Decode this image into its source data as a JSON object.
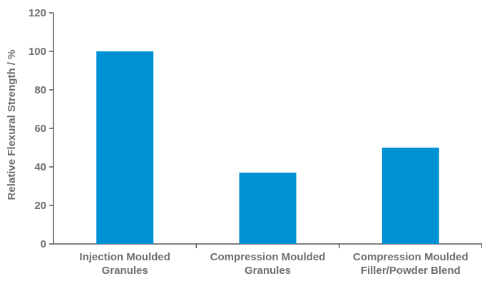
{
  "chart_data": {
    "type": "bar",
    "categories": [
      [
        "Injection Moulded",
        "Granules"
      ],
      [
        "Compression Moulded",
        "Granules"
      ],
      [
        "Compression Moulded",
        "Filler/Powder Blend"
      ]
    ],
    "values": [
      100,
      37,
      50
    ],
    "title": "",
    "xlabel": "",
    "ylabel": "Relative Flexural Strength / %",
    "ylim": [
      0,
      120
    ],
    "yticks": [
      "0",
      "20",
      "40",
      "60",
      "80",
      "100",
      "120"
    ],
    "grid": false,
    "legend": "none",
    "bar_color": "#0090d4",
    "axis_color": "#595959",
    "text_color": "#6d6e71"
  }
}
